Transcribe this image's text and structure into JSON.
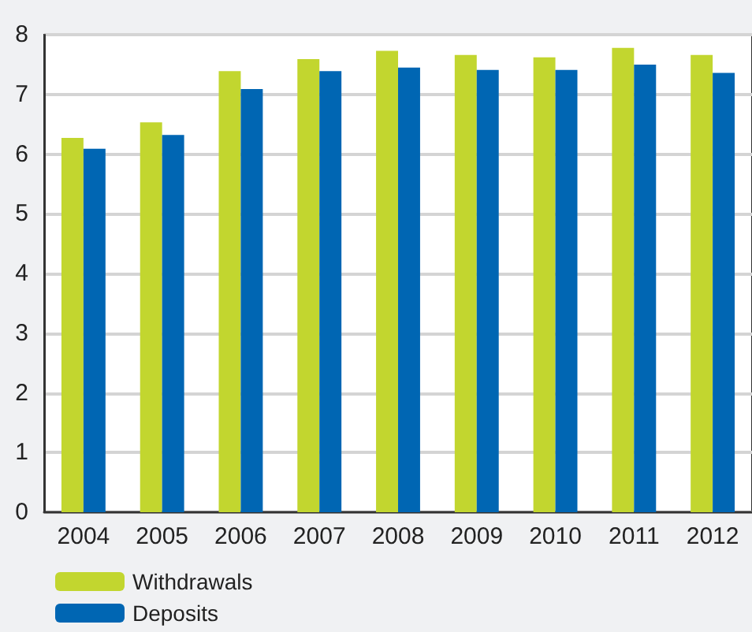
{
  "chart_data": {
    "type": "bar",
    "categories": [
      "2004",
      "2005",
      "2006",
      "2007",
      "2008",
      "2009",
      "2010",
      "2011",
      "2012"
    ],
    "series": [
      {
        "name": "Withdrawals",
        "color": "#c2d62f",
        "values": [
          6.27,
          6.53,
          7.39,
          7.59,
          7.73,
          7.66,
          7.62,
          7.78,
          7.66
        ]
      },
      {
        "name": "Deposits",
        "color": "#0066b3",
        "values": [
          6.09,
          6.32,
          7.09,
          7.39,
          7.45,
          7.41,
          7.41,
          7.5,
          7.36
        ]
      }
    ],
    "ylim": [
      0,
      8
    ],
    "yticks": [
      0,
      1,
      2,
      3,
      4,
      5,
      6,
      7,
      8
    ],
    "grid": "y",
    "legend": "bottom left"
  }
}
